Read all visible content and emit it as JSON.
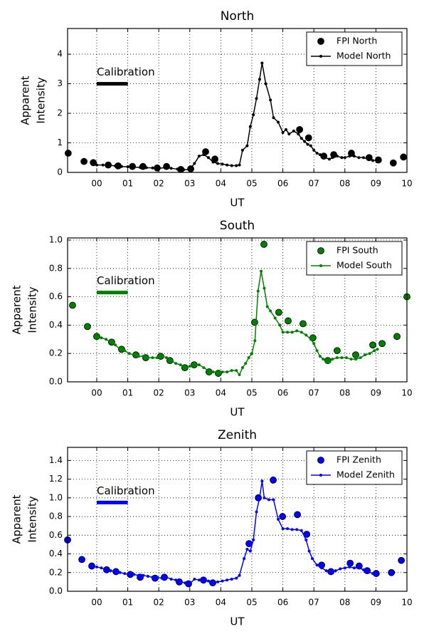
{
  "chart_data": [
    {
      "type": "line",
      "title": "North",
      "xlabel": "UT",
      "ylabel": [
        "Apparent",
        "Intensity"
      ],
      "xlim": [
        -0.94,
        10
      ],
      "ylim": [
        0,
        4.87
      ],
      "xticks": [
        {
          "value": 0,
          "label": "00"
        },
        {
          "value": 1,
          "label": "01"
        },
        {
          "value": 2,
          "label": "02"
        },
        {
          "value": 3,
          "label": "03"
        },
        {
          "value": 4,
          "label": "04"
        },
        {
          "value": 5,
          "label": "05"
        },
        {
          "value": 6,
          "label": "06"
        },
        {
          "value": 7,
          "label": "07"
        },
        {
          "value": 8,
          "label": "08"
        },
        {
          "value": 9,
          "label": "09"
        },
        10
      ],
      "yticks": [
        0,
        1,
        2,
        3,
        4
      ],
      "grid": true,
      "legend": "upper right",
      "calibration": {
        "label": "Calibration",
        "x": [
          0,
          1
        ],
        "y": 3,
        "color": "#000000"
      },
      "series": [
        {
          "name": "FPI North",
          "style": "markers",
          "color": "#000000",
          "x": [
            -0.92,
            -0.41,
            -0.11,
            0.37,
            0.69,
            1.15,
            1.49,
            1.95,
            2.25,
            2.71,
            3.03,
            3.51,
            3.81,
            6.54,
            6.83,
            7.32,
            7.64,
            8.21,
            8.78,
            9.08,
            9.56,
            9.89
          ],
          "values": [
            0.65,
            0.37,
            0.33,
            0.25,
            0.22,
            0.2,
            0.2,
            0.15,
            0.2,
            0.1,
            0.12,
            0.7,
            0.45,
            1.45,
            1.17,
            0.55,
            0.6,
            0.65,
            0.5,
            0.42,
            0.32,
            0.52
          ]
        },
        {
          "name": "Model North",
          "style": "line-markers",
          "color": "#000000",
          "x": [
            0.0,
            0.2,
            0.4,
            0.6,
            0.8,
            1.0,
            1.2,
            1.4,
            1.6,
            1.8,
            2.0,
            2.2,
            2.4,
            2.6,
            2.8,
            3.0,
            3.15,
            3.3,
            3.45,
            3.6,
            3.75,
            3.9,
            4.05,
            4.2,
            4.35,
            4.5,
            4.6,
            4.7,
            4.85,
            4.95,
            5.05,
            5.15,
            5.25,
            5.33,
            5.45,
            5.6,
            5.7,
            5.85,
            6.0,
            6.1,
            6.2,
            6.35,
            6.5,
            6.6,
            6.7,
            6.8,
            6.9,
            7.0,
            7.1,
            7.2,
            7.35,
            7.5,
            7.6,
            7.75,
            7.9,
            8.0,
            8.15,
            8.3,
            8.45,
            8.6,
            8.75,
            8.9,
            9.05
          ],
          "values": [
            0.25,
            0.25,
            0.24,
            0.22,
            0.2,
            0.19,
            0.18,
            0.17,
            0.16,
            0.15,
            0.14,
            0.16,
            0.14,
            0.11,
            0.09,
            0.1,
            0.3,
            0.55,
            0.6,
            0.5,
            0.35,
            0.3,
            0.28,
            0.25,
            0.23,
            0.23,
            0.25,
            0.75,
            0.9,
            1.55,
            1.95,
            2.5,
            3.15,
            3.7,
            3.0,
            2.45,
            1.85,
            1.7,
            1.35,
            1.45,
            1.3,
            1.4,
            1.3,
            1.15,
            1.05,
            0.95,
            0.9,
            0.75,
            0.65,
            0.6,
            0.5,
            0.45,
            0.5,
            0.55,
            0.5,
            0.5,
            0.55,
            0.55,
            0.5,
            0.5,
            0.45,
            0.4,
            0.42
          ]
        }
      ]
    },
    {
      "type": "line",
      "title": "South",
      "xlabel": "UT",
      "ylabel": [
        "Apparent",
        "Intensity"
      ],
      "xlim": [
        -0.94,
        10
      ],
      "ylim": [
        0,
        1.015
      ],
      "xticks": [
        {
          "value": 0,
          "label": "00"
        },
        {
          "value": 1,
          "label": "01"
        },
        {
          "value": 2,
          "label": "02"
        },
        {
          "value": 3,
          "label": "03"
        },
        {
          "value": 4,
          "label": "04"
        },
        {
          "value": 5,
          "label": "05"
        },
        {
          "value": 6,
          "label": "06"
        },
        {
          "value": 7,
          "label": "07"
        },
        {
          "value": 8,
          "label": "08"
        },
        {
          "value": 9,
          "label": "09"
        },
        10
      ],
      "yticks": [
        {
          "value": 0,
          "label": "0.0"
        },
        0.2,
        0.4,
        0.6,
        0.8,
        {
          "value": 1,
          "label": "1.0"
        }
      ],
      "grid": true,
      "legend": "upper right",
      "calibration": {
        "label": "Calibration",
        "x": [
          0,
          1
        ],
        "y": 0.63,
        "color": "#008000"
      },
      "series": [
        {
          "name": "FPI South",
          "style": "markers",
          "color": "#008000",
          "x": [
            -0.78,
            -0.3,
            0.0,
            0.48,
            0.8,
            1.26,
            1.58,
            2.06,
            2.36,
            2.84,
            3.14,
            3.62,
            3.92,
            5.09,
            5.39,
            5.87,
            6.17,
            6.65,
            6.97,
            7.45,
            7.75,
            8.35,
            8.9,
            9.2,
            9.68,
            10.0
          ],
          "values": [
            0.54,
            0.39,
            0.32,
            0.28,
            0.23,
            0.19,
            0.17,
            0.18,
            0.15,
            0.1,
            0.12,
            0.07,
            0.06,
            0.42,
            0.97,
            0.49,
            0.43,
            0.41,
            0.31,
            0.15,
            0.22,
            0.19,
            0.26,
            0.27,
            0.32,
            0.6
          ]
        },
        {
          "name": "Model South",
          "style": "line-markers",
          "color": "#008000",
          "x": [
            0.0,
            0.15,
            0.3,
            0.45,
            0.6,
            0.75,
            0.9,
            1.05,
            1.2,
            1.35,
            1.5,
            1.65,
            1.8,
            1.95,
            2.1,
            2.25,
            2.4,
            2.55,
            2.7,
            2.85,
            3.0,
            3.15,
            3.3,
            3.45,
            3.6,
            3.75,
            3.9,
            4.05,
            4.2,
            4.35,
            4.5,
            4.6,
            4.7,
            4.8,
            4.9,
            5.0,
            5.1,
            5.2,
            5.3,
            5.4,
            5.5,
            5.6,
            5.75,
            5.9,
            6.0,
            6.15,
            6.3,
            6.45,
            6.6,
            6.75,
            6.9,
            7.0,
            7.1,
            7.2,
            7.3,
            7.4,
            7.5,
            7.6,
            7.75,
            7.9,
            8.05,
            8.2,
            8.35,
            8.5,
            8.65,
            8.8,
            8.95,
            9.05
          ],
          "values": [
            0.32,
            0.31,
            0.3,
            0.28,
            0.26,
            0.23,
            0.22,
            0.2,
            0.19,
            0.18,
            0.18,
            0.17,
            0.17,
            0.17,
            0.18,
            0.17,
            0.15,
            0.13,
            0.12,
            0.1,
            0.11,
            0.13,
            0.12,
            0.1,
            0.08,
            0.07,
            0.07,
            0.07,
            0.07,
            0.08,
            0.08,
            0.05,
            0.1,
            0.13,
            0.17,
            0.2,
            0.29,
            0.64,
            0.78,
            0.66,
            0.53,
            0.5,
            0.45,
            0.4,
            0.35,
            0.35,
            0.35,
            0.36,
            0.35,
            0.33,
            0.3,
            0.27,
            0.22,
            0.18,
            0.16,
            0.14,
            0.14,
            0.16,
            0.17,
            0.17,
            0.17,
            0.16,
            0.16,
            0.17,
            0.19,
            0.2,
            0.22,
            0.23
          ]
        }
      ]
    },
    {
      "type": "line",
      "title": "Zenith",
      "xlabel": "UT",
      "ylabel": [
        "Apparent",
        "Intensity"
      ],
      "xlim": [
        -0.94,
        10
      ],
      "ylim": [
        0,
        1.54
      ],
      "xticks": [
        {
          "value": 0,
          "label": "00"
        },
        {
          "value": 1,
          "label": "01"
        },
        {
          "value": 2,
          "label": "02"
        },
        {
          "value": 3,
          "label": "03"
        },
        {
          "value": 4,
          "label": "04"
        },
        {
          "value": 5,
          "label": "05"
        },
        {
          "value": 6,
          "label": "06"
        },
        {
          "value": 7,
          "label": "07"
        },
        {
          "value": 8,
          "label": "08"
        },
        {
          "value": 9,
          "label": "09"
        },
        10
      ],
      "yticks": [
        {
          "value": 0,
          "label": "0.0"
        },
        0.2,
        0.4,
        0.6,
        0.8,
        {
          "value": 1,
          "label": "1.0"
        },
        1.2,
        1.4
      ],
      "grid": true,
      "legend": "upper right",
      "calibration": {
        "label": "Calibration",
        "x": [
          0,
          1
        ],
        "y": 0.95,
        "color": "#0000ff"
      },
      "series": [
        {
          "name": "FPI Zenith",
          "style": "markers",
          "color": "#0000ff",
          "x": [
            -0.94,
            -0.48,
            -0.16,
            0.32,
            0.62,
            1.08,
            1.4,
            1.88,
            2.18,
            2.66,
            2.96,
            3.44,
            3.74,
            4.91,
            5.21,
            5.69,
            5.99,
            6.47,
            6.77,
            7.25,
            7.55,
            8.17,
            8.46,
            8.72,
            9.01,
            9.5,
            9.82
          ],
          "values": [
            0.55,
            0.34,
            0.27,
            0.23,
            0.21,
            0.18,
            0.15,
            0.14,
            0.15,
            0.1,
            0.08,
            0.12,
            0.09,
            0.51,
            1.0,
            1.19,
            0.8,
            0.82,
            0.61,
            0.28,
            0.21,
            0.3,
            0.27,
            0.22,
            0.19,
            0.2,
            0.33
          ]
        },
        {
          "name": "Model Zenith",
          "style": "line-markers",
          "color": "#0000ff",
          "x": [
            0.0,
            0.15,
            0.3,
            0.45,
            0.6,
            0.75,
            0.9,
            1.05,
            1.2,
            1.35,
            1.5,
            1.65,
            1.8,
            1.95,
            2.1,
            2.25,
            2.4,
            2.55,
            2.7,
            2.85,
            3.0,
            3.15,
            3.3,
            3.45,
            3.6,
            3.75,
            3.9,
            4.05,
            4.2,
            4.35,
            4.5,
            4.6,
            4.75,
            4.85,
            4.95,
            5.05,
            5.15,
            5.25,
            5.33,
            5.4,
            5.55,
            5.7,
            5.85,
            6.0,
            6.15,
            6.3,
            6.45,
            6.6,
            6.75,
            6.85,
            6.95,
            7.1,
            7.25,
            7.4,
            7.55,
            7.7,
            7.85,
            8.0,
            8.15,
            8.3,
            8.45,
            8.6,
            8.75,
            8.9,
            9.05
          ],
          "values": [
            0.26,
            0.25,
            0.23,
            0.22,
            0.21,
            0.2,
            0.19,
            0.18,
            0.18,
            0.17,
            0.17,
            0.16,
            0.15,
            0.15,
            0.14,
            0.15,
            0.13,
            0.12,
            0.1,
            0.09,
            0.08,
            0.13,
            0.12,
            0.11,
            0.11,
            0.1,
            0.1,
            0.11,
            0.12,
            0.13,
            0.14,
            0.17,
            0.35,
            0.45,
            0.43,
            0.55,
            0.85,
            1.0,
            1.18,
            1.0,
            0.98,
            0.98,
            0.77,
            0.67,
            0.67,
            0.66,
            0.66,
            0.65,
            0.55,
            0.43,
            0.35,
            0.28,
            0.25,
            0.22,
            0.2,
            0.22,
            0.24,
            0.25,
            0.26,
            0.25,
            0.25,
            0.23,
            0.21,
            0.19,
            0.19
          ]
        }
      ]
    }
  ]
}
